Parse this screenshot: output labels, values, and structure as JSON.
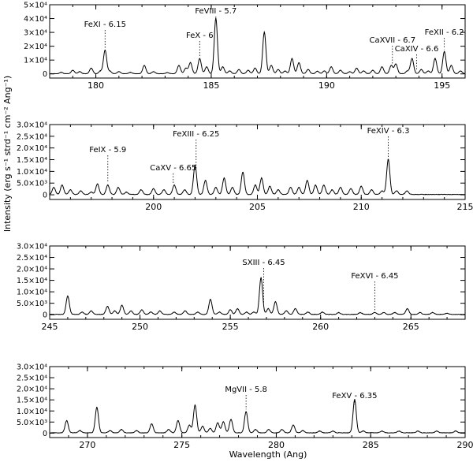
{
  "figure": {
    "xlabel": "Wavelength (Ang)",
    "ylabel": "Intensity (erg s⁻¹ strd⁻¹ cm⁻² Ang⁻¹)"
  },
  "chart_data": [
    {
      "type": "line",
      "xlim": [
        178,
        196
      ],
      "ylim": [
        -3000,
        50000
      ],
      "xticks": [
        180,
        185,
        190,
        195
      ],
      "xtick_labels": [
        "180",
        "185",
        "190",
        "195"
      ],
      "yticks": [
        0,
        10000,
        20000,
        30000,
        40000,
        50000
      ],
      "ytick_labels": [
        "0",
        "1×10⁴",
        "2×10⁴",
        "3×10⁴",
        "4×10⁴",
        "5×10⁴"
      ],
      "annotations": [
        {
          "label": "FeXI - 6.15",
          "x": 180.4
        },
        {
          "label": "FeVIII - 5.7",
          "x": 185.2
        },
        {
          "label": "FeX - 6",
          "x": 184.5
        },
        {
          "label": "CaXVII - 6.7",
          "x": 192.85
        },
        {
          "label": "CaXIV - 6.6",
          "x": 193.9
        },
        {
          "label": "FeXII - 6.2",
          "x": 195.1
        }
      ],
      "x": [
        178.5,
        179.0,
        179.3,
        179.8,
        180.2,
        180.4,
        180.6,
        181.0,
        181.5,
        182.1,
        182.5,
        183.1,
        183.6,
        183.9,
        184.1,
        184.5,
        184.8,
        185.2,
        185.5,
        185.8,
        186.2,
        186.6,
        186.9,
        187.3,
        187.6,
        187.9,
        188.2,
        188.5,
        188.8,
        189.2,
        189.6,
        189.9,
        190.2,
        190.6,
        191.0,
        191.3,
        191.6,
        192.0,
        192.4,
        192.8,
        193.0,
        193.5,
        193.7,
        194.1,
        194.4,
        194.7,
        195.1,
        195.4,
        195.8
      ],
      "y": [
        1000,
        2500,
        1500,
        4000,
        2000,
        17000,
        2000,
        1500,
        1000,
        6000,
        1500,
        800,
        6000,
        4000,
        8000,
        11000,
        5000,
        40000,
        5000,
        2000,
        3000,
        2500,
        4000,
        30000,
        6000,
        3000,
        2000,
        11000,
        8000,
        3000,
        1800,
        2000,
        5000,
        2500,
        1500,
        4000,
        2000,
        2500,
        5000,
        6000,
        7000,
        2000,
        11000,
        3000,
        2000,
        11000,
        16000,
        6000,
        2000
      ]
    },
    {
      "type": "line",
      "xlim": [
        195,
        215
      ],
      "ylim": [
        -2000,
        30000
      ],
      "xticks": [
        200,
        205,
        210,
        215
      ],
      "xtick_labels": [
        "200",
        "205",
        "210",
        "215"
      ],
      "yticks": [
        0,
        5000,
        10000,
        15000,
        20000,
        25000,
        30000
      ],
      "ytick_labels": [
        "0",
        "5.0×10³",
        "1.0×10⁴",
        "1.5×10⁴",
        "2.0×10⁴",
        "2.5×10⁴",
        "3.0×10⁴"
      ],
      "annotations": [
        {
          "label": "FeIX - 5.9",
          "x": 197.8
        },
        {
          "label": "FeXIII - 6.25",
          "x": 202.05
        },
        {
          "label": "CaXV - 6.65",
          "x": 200.95
        },
        {
          "label": "FeXIV - 6.3",
          "x": 211.3
        }
      ],
      "x": [
        195.2,
        195.6,
        196.0,
        196.5,
        197.0,
        197.3,
        197.8,
        198.3,
        198.7,
        199.4,
        200.0,
        200.5,
        201.0,
        201.5,
        202.0,
        202.5,
        203.0,
        203.4,
        203.8,
        204.3,
        204.9,
        205.2,
        205.6,
        206.0,
        206.6,
        207.0,
        207.4,
        207.8,
        208.2,
        208.6,
        209.0,
        209.5,
        210.0,
        210.5,
        211.0,
        211.3,
        211.7,
        212.2
      ],
      "y": [
        3000,
        4000,
        2000,
        1500,
        1000,
        4500,
        4000,
        3000,
        1000,
        2000,
        2500,
        2000,
        4000,
        2000,
        12500,
        6000,
        3000,
        7000,
        3000,
        9500,
        4000,
        7000,
        3500,
        2000,
        3000,
        3000,
        6000,
        4000,
        4000,
        2000,
        3000,
        2500,
        3500,
        2000,
        1500,
        15000,
        1500,
        1500
      ]
    },
    {
      "type": "line",
      "xlim": [
        245,
        268
      ],
      "ylim": [
        -2000,
        30000
      ],
      "xticks": [
        245,
        250,
        255,
        260,
        265
      ],
      "xtick_labels": [
        "245",
        "250",
        "255",
        "260",
        "265"
      ],
      "yticks": [
        0,
        5000,
        10000,
        15000,
        20000,
        25000,
        30000
      ],
      "ytick_labels": [
        "0",
        "5.0×10³",
        "1.0×10⁴",
        "1.5×10⁴",
        "2.0×10⁴",
        "2.5×10⁴",
        "3.0×10⁴"
      ],
      "annotations": [
        {
          "label": "SXIII - 6.45",
          "x": 256.85
        },
        {
          "label": "FeXVI - 6.45",
          "x": 263.0
        }
      ],
      "x": [
        246.0,
        246.8,
        247.3,
        248.2,
        248.6,
        249.0,
        249.5,
        250.1,
        250.6,
        251.1,
        251.9,
        252.5,
        253.2,
        253.9,
        254.4,
        255.0,
        255.4,
        255.9,
        256.3,
        256.7,
        257.1,
        257.5,
        258.1,
        258.6,
        259.3,
        260.1,
        261.0,
        262.2,
        263.0,
        263.5,
        264.1,
        264.8,
        265.5,
        266.2,
        267.0
      ],
      "y": [
        8000,
        1000,
        1500,
        3500,
        1500,
        4000,
        1500,
        2000,
        1000,
        1500,
        1000,
        1500,
        1000,
        6500,
        1000,
        2000,
        2500,
        1000,
        1000,
        16000,
        2500,
        5500,
        1500,
        2500,
        1000,
        1000,
        800,
        800,
        800,
        800,
        800,
        2500,
        800,
        800,
        500
      ]
    },
    {
      "type": "line",
      "xlim": [
        268,
        290
      ],
      "ylim": [
        -2000,
        30000
      ],
      "xticks": [
        270,
        275,
        280,
        285,
        290
      ],
      "xtick_labels": [
        "270",
        "275",
        "280",
        "285",
        "290"
      ],
      "yticks": [
        0,
        5000,
        10000,
        15000,
        20000,
        25000,
        30000
      ],
      "ytick_labels": [
        "0",
        "5.0×10³",
        "1.0×10⁴",
        "1.5×10⁴",
        "2.0×10⁴",
        "2.5×10⁴",
        "3.0×10⁴"
      ],
      "annotations": [
        {
          "label": "MgVII - 5.8",
          "x": 278.4
        },
        {
          "label": "FeXV - 6.35",
          "x": 284.15
        }
      ],
      "x": [
        268.9,
        269.6,
        270.5,
        271.2,
        271.8,
        272.6,
        273.4,
        274.3,
        274.8,
        275.4,
        275.7,
        276.1,
        276.5,
        276.9,
        277.2,
        277.6,
        278.4,
        278.9,
        279.6,
        280.3,
        280.9,
        281.4,
        282.3,
        283.0,
        284.15,
        284.6,
        285.6,
        286.5,
        287.5,
        288.5,
        289.5
      ],
      "y": [
        5500,
        1000,
        11500,
        1000,
        1500,
        1000,
        4000,
        1500,
        5500,
        3500,
        12500,
        3000,
        2000,
        4500,
        5000,
        6000,
        9500,
        1500,
        1500,
        1500,
        3500,
        1000,
        800,
        800,
        15000,
        800,
        800,
        800,
        800,
        800,
        800
      ]
    }
  ]
}
